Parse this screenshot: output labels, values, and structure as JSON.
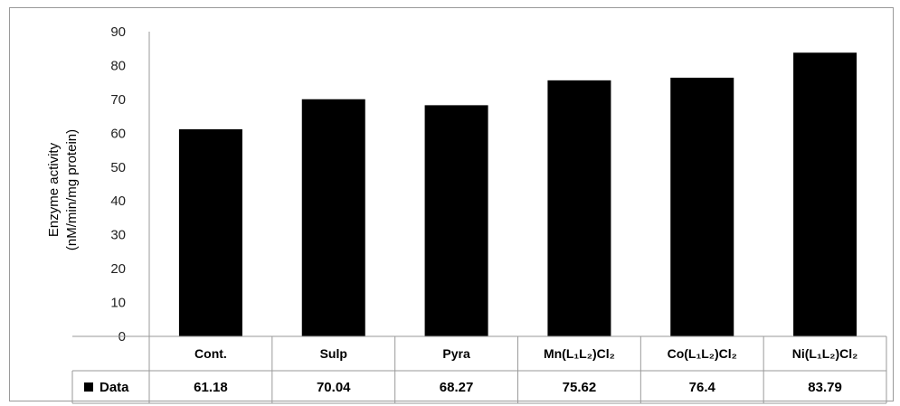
{
  "chart_data": {
    "type": "bar",
    "categories": [
      "Cont.",
      "Sulp",
      "Pyra",
      "Mn(L₁L₂)Cl₂",
      "Co(L₁L₂)Cl₂",
      "Ni(L₁L₂)Cl₂"
    ],
    "series": [
      {
        "name": "Data",
        "values": [
          61.18,
          70.04,
          68.27,
          75.62,
          76.4,
          83.79
        ]
      }
    ],
    "ylabel_line1": "Enzyme activity",
    "ylabel_line2": "(nM/min/mg protein)",
    "ylim": [
      0,
      90
    ],
    "yticks": [
      0,
      10,
      20,
      30,
      40,
      50,
      60,
      70,
      80,
      90
    ],
    "data_table": true,
    "bar_color": "#000000",
    "grid": false
  }
}
